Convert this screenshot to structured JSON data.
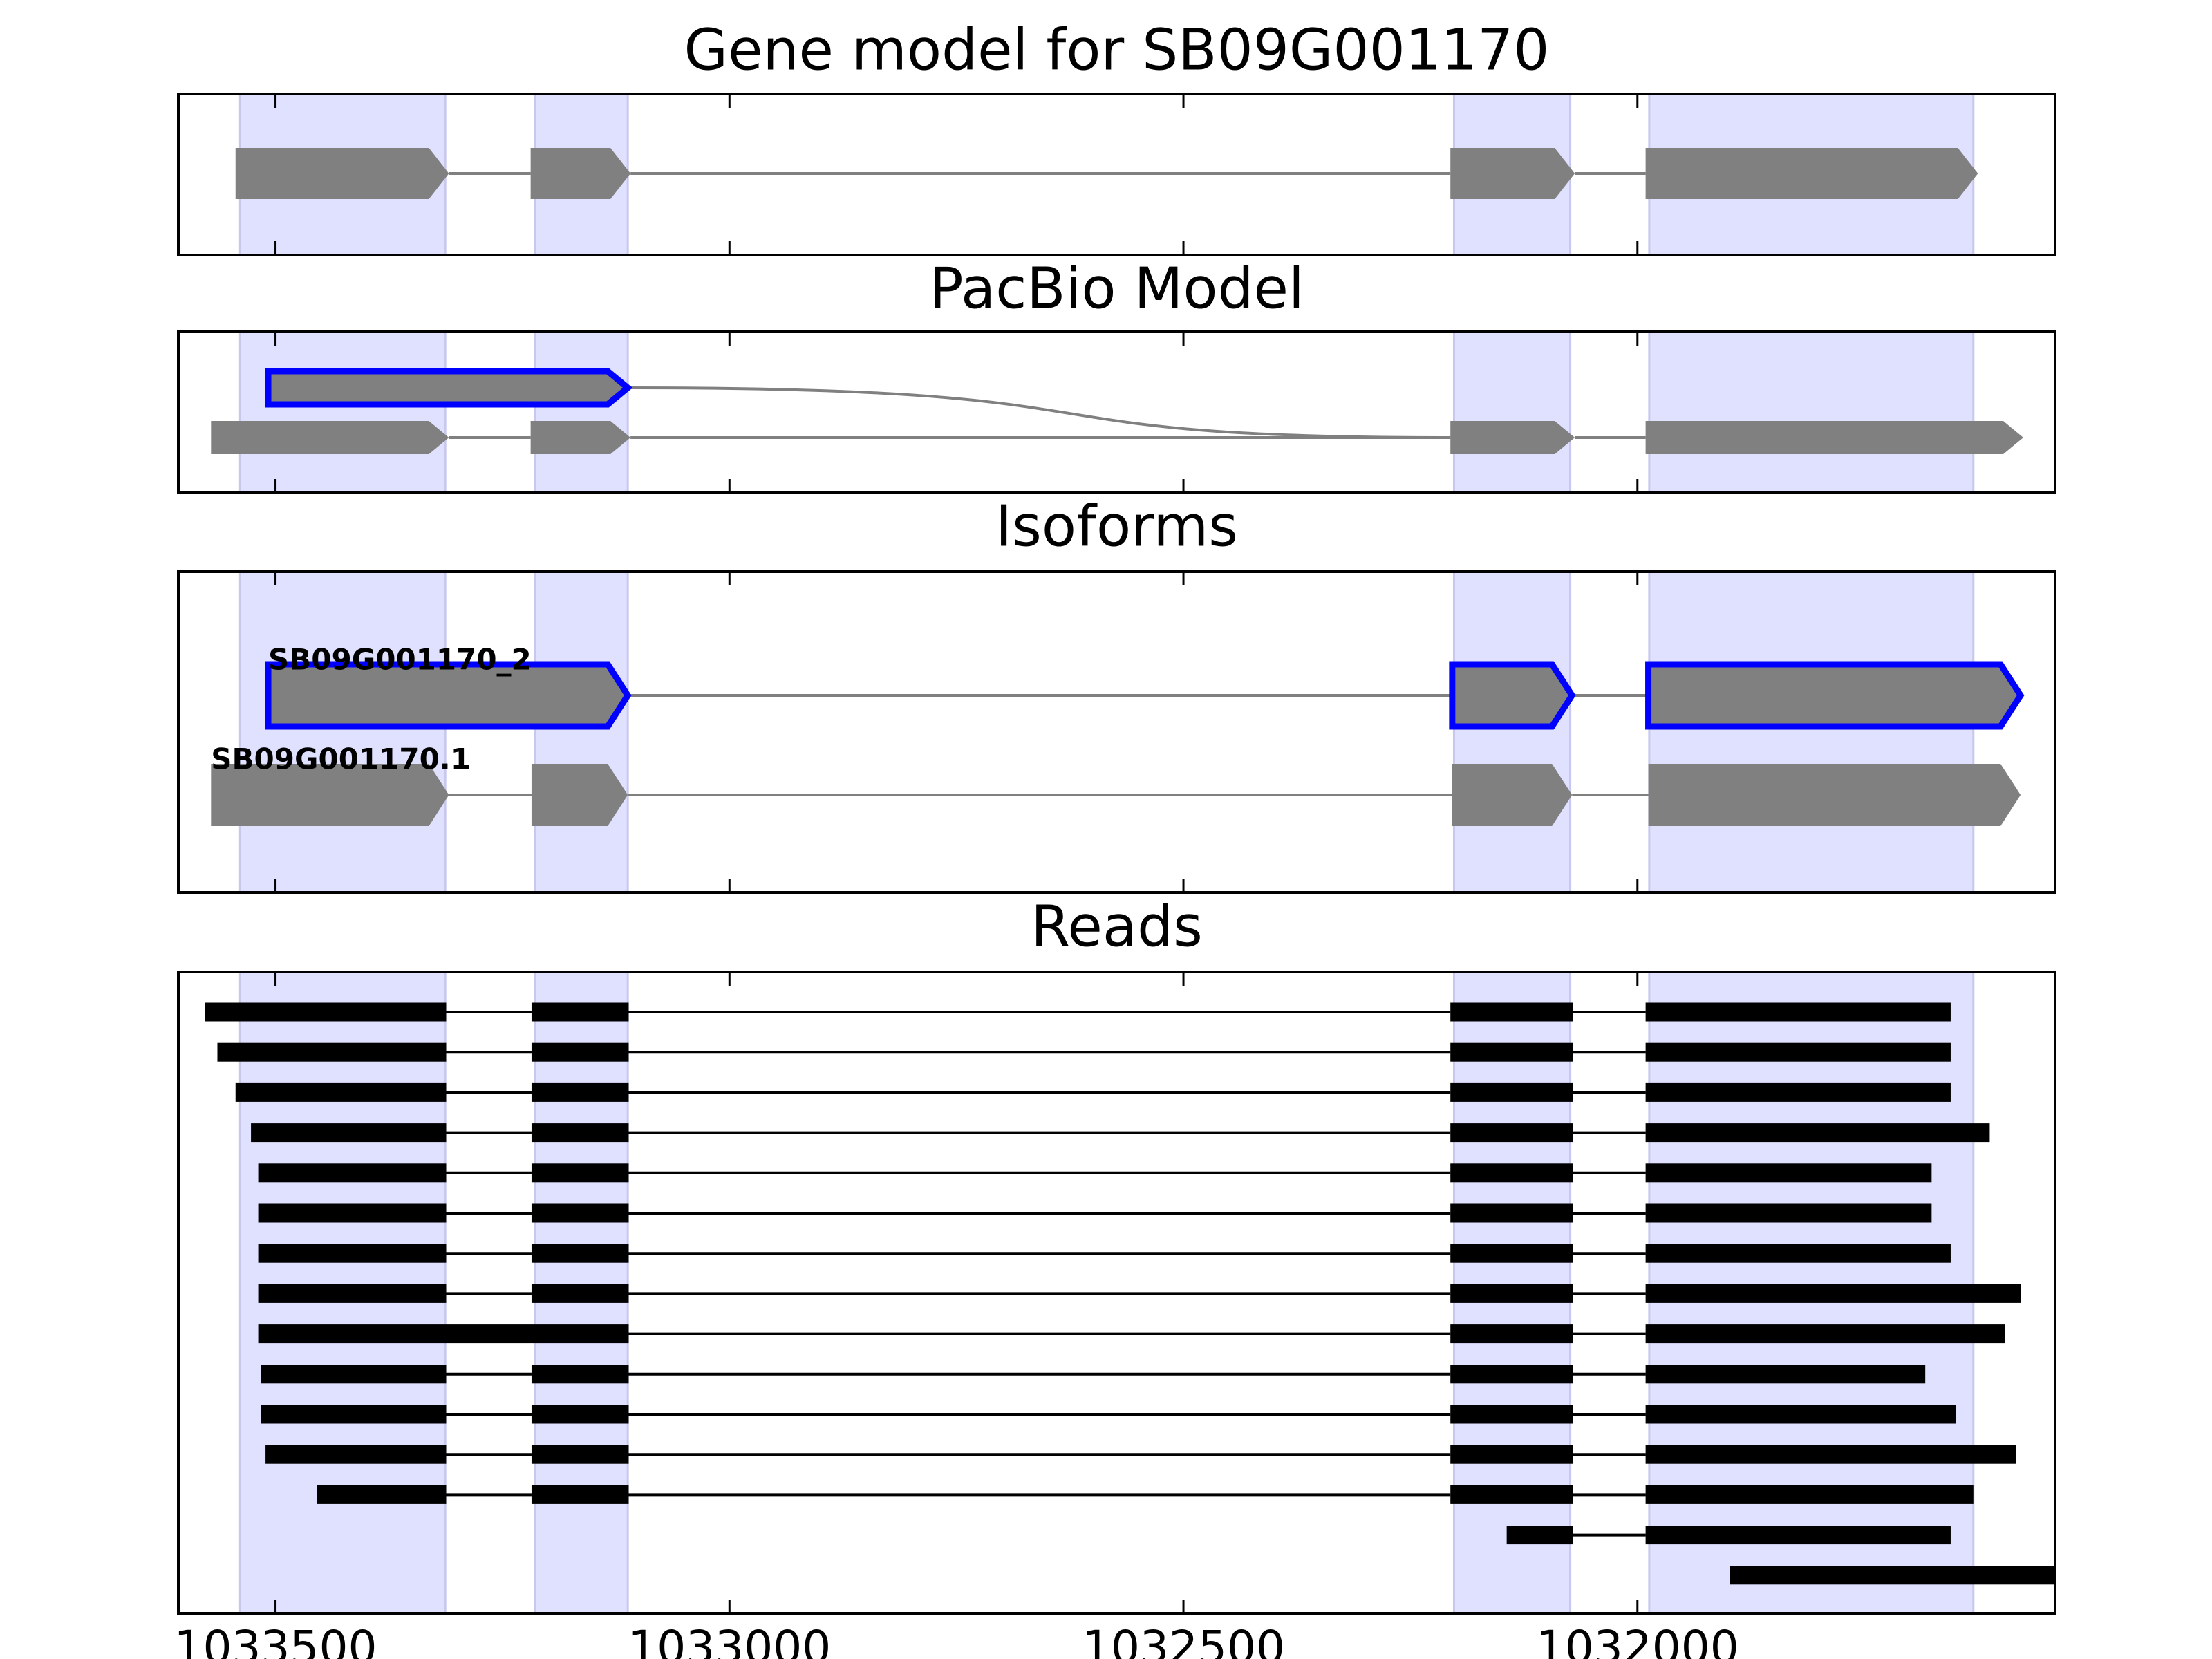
{
  "chart_data": {
    "type": "gene-tracks",
    "xlim": [
      1033607,
      1031540
    ],
    "xticks": [
      1033500,
      1033000,
      1032500,
      1032000
    ],
    "highlight_color": "#e0e0ff",
    "exon_regions": [
      [
        1033539,
        1033313
      ],
      [
        1033214,
        1033112
      ],
      [
        1032202,
        1032074
      ],
      [
        1031987,
        1031630
      ]
    ],
    "panels": [
      {
        "title": "Gene model for SB09G001170",
        "shape": "arrow",
        "tracks": [
          {
            "color": "#808080",
            "exons": [
              [
                1033544,
                1033309
              ],
              [
                1033219,
                1033109
              ],
              [
                1032206,
                1032069
              ],
              [
                1031991,
                1031625
              ]
            ]
          }
        ]
      },
      {
        "title": "PacBio Model",
        "shape": "arrow",
        "tracks": [
          {
            "color": "#808080",
            "outline": "#0000ff",
            "exons": [
              [
                1033508,
                1033112
              ]
            ]
          },
          {
            "color": "#808080",
            "exons": [
              [
                1033571,
                1033309
              ],
              [
                1033219,
                1033109
              ],
              [
                1032206,
                1032069
              ],
              [
                1031991,
                1031575
              ]
            ]
          }
        ]
      },
      {
        "title": "Isoforms",
        "shape": "arrow",
        "tracks": [
          {
            "label": "SB09G001170_2",
            "color": "#808080",
            "outline": "#0000ff",
            "exons": [
              [
                1033508,
                1033112
              ],
              [
                1032204,
                1032072
              ],
              [
                1031988,
                1031578
              ]
            ]
          },
          {
            "label": "SB09G001170.1",
            "color": "#808080",
            "exons": [
              [
                1033571,
                1033309
              ],
              [
                1033218,
                1033112
              ],
              [
                1032204,
                1032072
              ],
              [
                1031988,
                1031578
              ]
            ]
          }
        ]
      },
      {
        "title": "Reads",
        "shape": "bar",
        "tracks": [
          {
            "color": "#000000",
            "exons": [
              [
                1033578,
                1033312
              ],
              [
                1033218,
                1033111
              ],
              [
                1032206,
                1032071
              ],
              [
                1031991,
                1031655
              ]
            ]
          },
          {
            "color": "#000000",
            "exons": [
              [
                1033564,
                1033312
              ],
              [
                1033218,
                1033111
              ],
              [
                1032206,
                1032071
              ],
              [
                1031991,
                1031655
              ]
            ]
          },
          {
            "color": "#000000",
            "exons": [
              [
                1033544,
                1033312
              ],
              [
                1033218,
                1033111
              ],
              [
                1032206,
                1032071
              ],
              [
                1031991,
                1031655
              ]
            ]
          },
          {
            "color": "#000000",
            "exons": [
              [
                1033527,
                1033312
              ],
              [
                1033218,
                1033111
              ],
              [
                1032206,
                1032071
              ],
              [
                1031991,
                1031612
              ]
            ]
          },
          {
            "color": "#000000",
            "exons": [
              [
                1033519,
                1033312
              ],
              [
                1033218,
                1033111
              ],
              [
                1032206,
                1032071
              ],
              [
                1031991,
                1031676
              ]
            ]
          },
          {
            "color": "#000000",
            "exons": [
              [
                1033519,
                1033312
              ],
              [
                1033218,
                1033111
              ],
              [
                1032206,
                1032071
              ],
              [
                1031991,
                1031676
              ]
            ]
          },
          {
            "color": "#000000",
            "exons": [
              [
                1033519,
                1033312
              ],
              [
                1033218,
                1033111
              ],
              [
                1032206,
                1032071
              ],
              [
                1031991,
                1031655
              ]
            ]
          },
          {
            "color": "#000000",
            "exons": [
              [
                1033519,
                1033312
              ],
              [
                1033218,
                1033111
              ],
              [
                1032206,
                1032071
              ],
              [
                1031991,
                1031578
              ]
            ]
          },
          {
            "color": "#000000",
            "exons": [
              [
                1033519,
                1033111
              ],
              [
                1032206,
                1032071
              ],
              [
                1031991,
                1031595
              ]
            ]
          },
          {
            "color": "#000000",
            "exons": [
              [
                1033516,
                1033312
              ],
              [
                1033218,
                1033111
              ],
              [
                1032206,
                1032071
              ],
              [
                1031991,
                1031683
              ]
            ]
          },
          {
            "color": "#000000",
            "exons": [
              [
                1033516,
                1033312
              ],
              [
                1033218,
                1033111
              ],
              [
                1032206,
                1032071
              ],
              [
                1031991,
                1031649
              ]
            ]
          },
          {
            "color": "#000000",
            "exons": [
              [
                1033511,
                1033312
              ],
              [
                1033218,
                1033111
              ],
              [
                1032206,
                1032071
              ],
              [
                1031991,
                1031583
              ]
            ]
          },
          {
            "color": "#000000",
            "exons": [
              [
                1033454,
                1033312
              ],
              [
                1033218,
                1033111
              ],
              [
                1032206,
                1032071
              ],
              [
                1031991,
                1031630
              ]
            ]
          },
          {
            "color": "#000000",
            "exons": [
              [
                1032144,
                1032071
              ],
              [
                1031991,
                1031655
              ]
            ]
          },
          {
            "color": "#000000",
            "exons": [
              [
                1031898,
                1031500
              ]
            ]
          }
        ]
      }
    ]
  }
}
